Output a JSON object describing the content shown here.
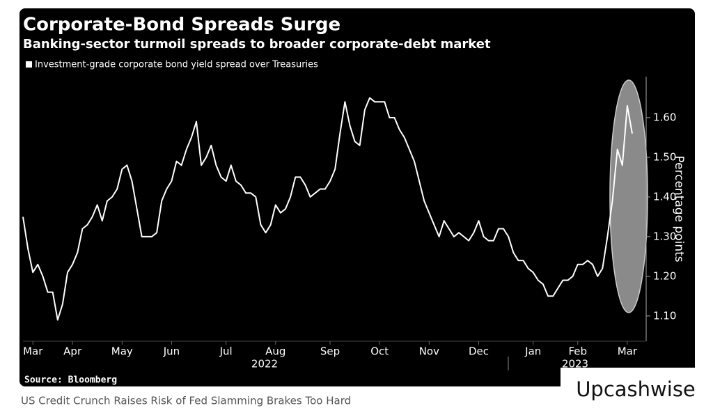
{
  "chart_data": {
    "type": "line",
    "title": "Corporate-Bond Spreads Surge",
    "subtitle": "Banking-sector turmoil spreads to broader corporate-debt market",
    "y_label": "Percentage points",
    "source": "Source: Bloomberg",
    "years": [
      "2022",
      "2023"
    ],
    "categories": [
      null,
      null,
      "Mar",
      null,
      null,
      null,
      null,
      null,
      null,
      null,
      "Apr",
      null,
      null,
      null,
      null,
      null,
      null,
      null,
      null,
      null,
      "May",
      null,
      null,
      null,
      null,
      null,
      null,
      null,
      null,
      null,
      "Jun",
      null,
      null,
      null,
      null,
      null,
      null,
      null,
      null,
      null,
      null,
      "Jul",
      null,
      null,
      null,
      null,
      null,
      null,
      null,
      null,
      null,
      "Aug",
      null,
      null,
      null,
      null,
      null,
      null,
      null,
      null,
      null,
      null,
      "Sep",
      null,
      null,
      null,
      null,
      null,
      null,
      null,
      null,
      null,
      "Oct",
      null,
      null,
      null,
      null,
      null,
      null,
      null,
      null,
      null,
      "Nov",
      null,
      null,
      null,
      null,
      null,
      null,
      null,
      null,
      null,
      "Dec",
      null,
      null,
      null,
      null,
      null,
      null,
      null,
      null,
      null,
      null,
      "Jan",
      null,
      null,
      null,
      null,
      null,
      null,
      null,
      null,
      "Feb",
      null,
      null,
      null,
      null,
      null,
      null,
      null,
      null,
      null,
      "Mar",
      null
    ],
    "series": [
      {
        "name": "Investment-grade corporate bond yield spread over Treasuries",
        "color": "#ffffff",
        "values": [
          1.35,
          1.27,
          1.21,
          1.23,
          1.2,
          1.16,
          1.16,
          1.09,
          1.13,
          1.21,
          1.23,
          1.26,
          1.32,
          1.33,
          1.35,
          1.38,
          1.34,
          1.39,
          1.4,
          1.42,
          1.47,
          1.48,
          1.44,
          1.37,
          1.3,
          1.3,
          1.3,
          1.31,
          1.39,
          1.42,
          1.44,
          1.49,
          1.48,
          1.52,
          1.55,
          1.59,
          1.48,
          1.5,
          1.53,
          1.48,
          1.45,
          1.44,
          1.48,
          1.44,
          1.43,
          1.41,
          1.41,
          1.4,
          1.33,
          1.31,
          1.33,
          1.38,
          1.36,
          1.37,
          1.4,
          1.45,
          1.45,
          1.43,
          1.4,
          1.41,
          1.42,
          1.42,
          1.44,
          1.47,
          1.56,
          1.64,
          1.58,
          1.54,
          1.53,
          1.62,
          1.65,
          1.64,
          1.64,
          1.64,
          1.6,
          1.6,
          1.57,
          1.55,
          1.52,
          1.49,
          1.44,
          1.39,
          1.36,
          1.33,
          1.3,
          1.34,
          1.32,
          1.3,
          1.31,
          1.3,
          1.29,
          1.31,
          1.34,
          1.3,
          1.29,
          1.29,
          1.32,
          1.32,
          1.3,
          1.26,
          1.24,
          1.24,
          1.22,
          1.21,
          1.19,
          1.18,
          1.15,
          1.15,
          1.17,
          1.19,
          1.19,
          1.2,
          1.23,
          1.23,
          1.24,
          1.23,
          1.2,
          1.22,
          1.3,
          1.39,
          1.52,
          1.48,
          1.63,
          1.56
        ]
      }
    ],
    "ylim": [
      1.04,
      1.7
    ],
    "yticks": [
      {
        "value": 1.1,
        "label": "1.10"
      },
      {
        "value": 1.2,
        "label": "1.20"
      },
      {
        "value": 1.3,
        "label": "1.30"
      },
      {
        "value": 1.4,
        "label": "1.40"
      },
      {
        "value": 1.5,
        "label": "1.50"
      },
      {
        "value": 1.6,
        "label": "1.60"
      }
    ]
  },
  "caption": "US Credit Crunch Raises Risk of Fed Slamming Brakes Too Hard",
  "watermark": "Upcashwise"
}
